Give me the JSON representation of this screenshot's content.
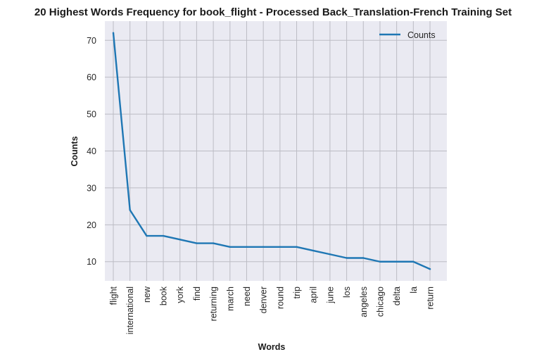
{
  "chart_data": {
    "type": "line",
    "title": "20 Highest Words Frequency for book_flight - Processed Back_Translation-French Training Set",
    "xlabel": "Words",
    "ylabel": "Counts",
    "categories": [
      "flight",
      "international",
      "new",
      "book",
      "york",
      "find",
      "returning",
      "march",
      "need",
      "denver",
      "round",
      "trip",
      "april",
      "june",
      "los",
      "angeles",
      "chicago",
      "delta",
      "la",
      "return"
    ],
    "series": [
      {
        "name": "Counts",
        "values": [
          72,
          24,
          17,
          17,
          16,
          15,
          15,
          14,
          14,
          14,
          14,
          14,
          13,
          12,
          11,
          11,
          10,
          10,
          10,
          8
        ]
      }
    ],
    "ylim": [
      4.8,
      75.2
    ],
    "yticks": [
      "10",
      "20",
      "30",
      "40",
      "50",
      "60",
      "70"
    ],
    "grid": true,
    "legend": "top-right",
    "colors": {
      "series": "#1f77b4",
      "plot_bg": "#eaeaf2",
      "grid": "#bcbcc4"
    }
  }
}
